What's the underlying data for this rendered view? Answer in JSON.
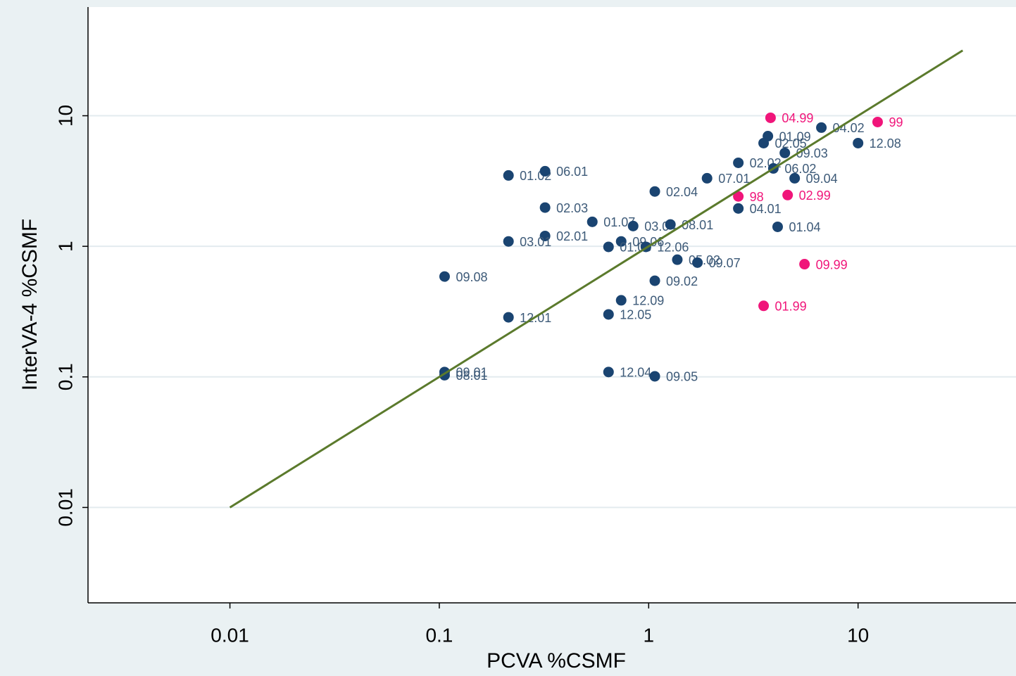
{
  "chart_data": {
    "type": "scatter",
    "x_label": "PCVA %CSMF",
    "y_label": "InterVA-4 %CSMF",
    "log_x": true,
    "log_y": true,
    "xlim": [
      0.0021,
      56.8
    ],
    "ylim": [
      0.00186,
      68
    ],
    "xticks": [
      0.01,
      0.1,
      1,
      10
    ],
    "yticks": [
      0.01,
      0.1,
      1,
      10
    ],
    "grid": "y",
    "series": [
      {
        "type": "scatter",
        "color": "#1a4471",
        "label_color": "#3d5a78",
        "labels": [
          "01.02",
          "06.01",
          "02.03",
          "02.01",
          "03.01",
          "09.08",
          "12.01",
          "09.01",
          "08.01",
          "01.07",
          "03.04",
          "08.01",
          "09.06",
          "01.03",
          "12.06",
          "05.02",
          "09.07",
          "09.02",
          "12.09",
          "12.05",
          "12.04",
          "09.05",
          "02.04",
          "07.01",
          "02.02",
          "04.01",
          "01.04",
          "06.02",
          "09.04",
          "09.03",
          "01.09",
          "02.05",
          "04.02",
          "12.08"
        ],
        "x": [
          0.214,
          0.32,
          0.32,
          0.32,
          0.214,
          0.106,
          0.214,
          0.106,
          0.106,
          0.538,
          0.843,
          1.27,
          0.739,
          0.643,
          0.97,
          1.37,
          1.71,
          1.07,
          0.739,
          0.643,
          0.643,
          1.07,
          1.07,
          1.9,
          2.68,
          2.68,
          4.13,
          3.94,
          4.98,
          4.47,
          3.71,
          3.54,
          6.68,
          10
        ],
        "values": [
          3.49,
          3.76,
          1.98,
          1.2,
          1.09,
          0.587,
          0.286,
          0.109,
          0.103,
          1.54,
          1.43,
          1.47,
          1.09,
          0.99,
          0.99,
          0.79,
          0.75,
          0.545,
          0.386,
          0.301,
          0.109,
          0.101,
          2.63,
          3.32,
          4.36,
          1.95,
          1.41,
          3.95,
          3.32,
          5.19,
          6.98,
          6.17,
          8.11,
          6.17
        ]
      },
      {
        "type": "scatter",
        "color": "#f0157a",
        "label_color": "#f0157a",
        "labels": [
          "04.99",
          "99",
          "98",
          "02.99",
          "09.99",
          "01.99"
        ],
        "x": [
          3.82,
          12.4,
          2.68,
          4.61,
          5.55,
          3.54
        ],
        "values": [
          9.64,
          8.95,
          2.41,
          2.47,
          0.73,
          0.35
        ]
      },
      {
        "type": "line",
        "color": "#5b7a2c",
        "x": [
          0.01,
          31.6
        ],
        "values": [
          0.01,
          31.6
        ]
      }
    ]
  }
}
